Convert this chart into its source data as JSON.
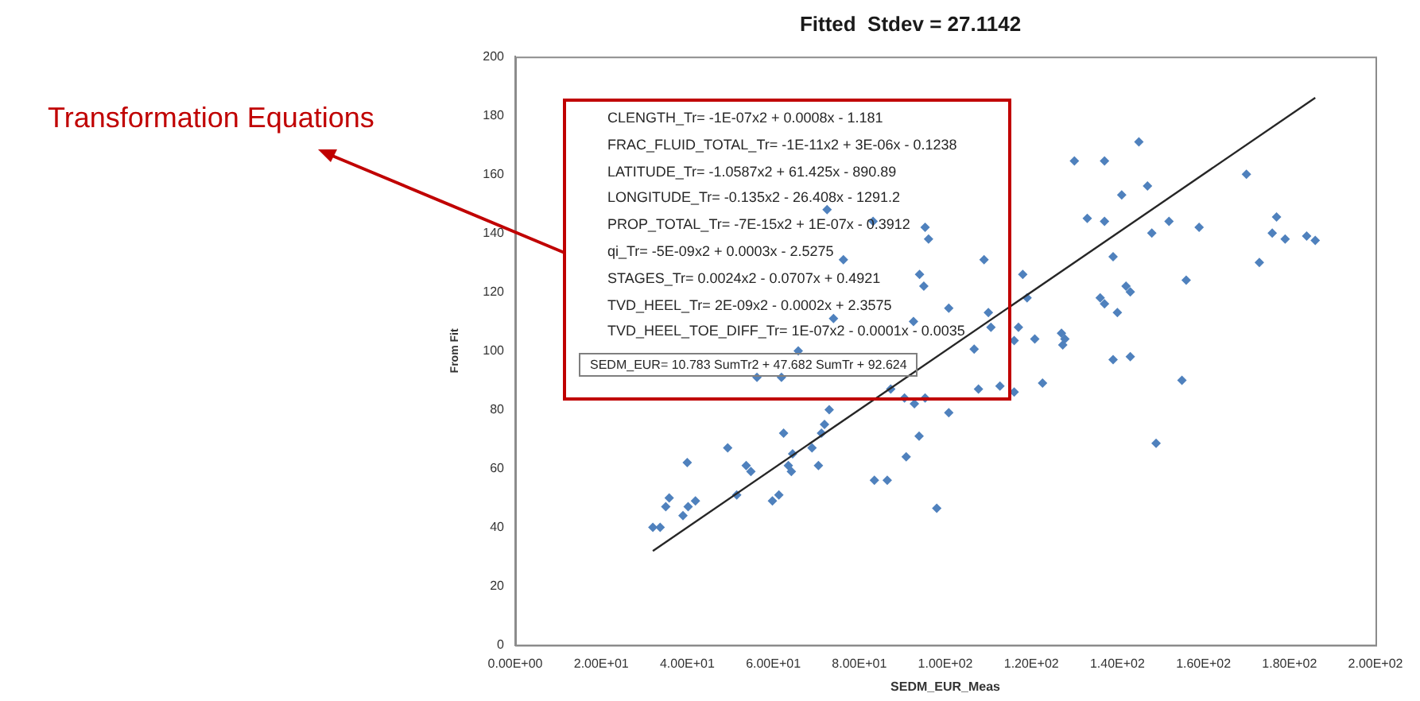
{
  "chart_data": {
    "type": "scatter",
    "title": "Fitted  Stdev = 27.1142",
    "xlabel": "SEDM_EUR_Meas",
    "ylabel": "From Fit",
    "xlim": [
      0,
      200
    ],
    "xticks": [
      {
        "value": 0,
        "label": "0.00E+00"
      },
      {
        "value": 20,
        "label": "2.00E+01"
      },
      {
        "value": 40,
        "label": "4.00E+01"
      },
      {
        "value": 60,
        "label": "6.00E+01"
      },
      {
        "value": 80,
        "label": "8.00E+01"
      },
      {
        "value": 100,
        "label": "1.00E+02"
      },
      {
        "value": 120,
        "label": "1.20E+02"
      },
      {
        "value": 140,
        "label": "1.40E+02"
      },
      {
        "value": 160,
        "label": "1.60E+02"
      },
      {
        "value": 180,
        "label": "1.80E+02"
      },
      {
        "value": 200,
        "label": "2.00E+02"
      }
    ],
    "ylim": [
      0,
      200
    ],
    "yticks": [
      0,
      20,
      40,
      60,
      80,
      100,
      120,
      140,
      160,
      180,
      200
    ],
    "grid": false,
    "marker": "diamond",
    "series": [
      {
        "color": "#4f81bd",
        "x": [
          32,
          33.7,
          35,
          35.8,
          39,
          40,
          40.2,
          41.9,
          49.4,
          51.5,
          53.7,
          54.8,
          56.2,
          59.8,
          61.3,
          61.9,
          62.4,
          63.5,
          64.2,
          64.5,
          65.8,
          69,
          70.5,
          71.2,
          71.9,
          73,
          74,
          83.5,
          86.5,
          87.3,
          90.5,
          90.9,
          92.8,
          93.9,
          95.3,
          98,
          100.8,
          106.7,
          107.7,
          112.7,
          116,
          116,
          117,
          120.8,
          122.6,
          127,
          127.3,
          127.8,
          139,
          143,
          149,
          155,
          72.5,
          83.2,
          76.3,
          95.3,
          96.1,
          109,
          94,
          95,
          100.8,
          110,
          110.6,
          118,
          119,
          130,
          137,
          145,
          147,
          141,
          133,
          137,
          139,
          148,
          152,
          159,
          156,
          136,
          137,
          140,
          142,
          143,
          170,
          173,
          176,
          177,
          179,
          184,
          186,
          92.6
        ],
        "values": [
          40,
          40,
          47,
          50,
          44,
          62,
          47,
          49,
          67,
          51,
          61,
          59,
          91,
          49,
          51,
          91,
          72,
          61,
          59,
          65,
          100,
          67,
          61,
          72,
          75,
          80,
          111,
          56,
          56,
          87,
          84,
          64,
          82,
          71,
          84,
          46.5,
          79,
          100.6,
          87,
          88,
          86,
          103.5,
          108,
          104,
          89,
          106,
          102,
          104,
          97,
          98,
          68.6,
          90,
          148,
          144,
          131,
          142,
          138,
          131,
          126,
          122,
          114.5,
          113,
          108,
          126,
          118,
          164.5,
          164.5,
          171,
          156,
          153,
          145,
          144,
          132,
          140,
          144,
          142,
          124,
          118,
          116,
          113,
          122,
          120,
          160,
          130,
          140,
          145.5,
          138,
          139,
          137.5,
          110
        ]
      },
      {
        "type": "line",
        "color": "#262626",
        "marker": "none",
        "x": [
          32,
          186
        ],
        "values": [
          32,
          186
        ]
      }
    ],
    "annotations": [
      "Transformation Equations",
      "CLENGTH_Tr= -1E-07x2 + 0.0008x - 1.181",
      "FRAC_FLUID_TOTAL_Tr= -1E-11x2 + 3E-06x - 0.1238",
      "LATITUDE_Tr= -1.0587x2 + 61.425x - 890.89",
      "LONGITUDE_Tr= -0.135x2 - 26.408x - 1291.2",
      "PROP_TOTAL_Tr= -7E-15x2 + 1E-07x - 0.3912",
      "qi_Tr= -5E-09x2 + 0.0003x - 2.5275",
      "STAGES_Tr= 0.0024x2 - 0.0707x + 0.4921",
      "TVD_HEEL_Tr= 2E-09x2 - 0.0002x + 2.3575",
      "TVD_HEEL_TOE_DIFF_Tr= 1E-07x2 - 0.0001x - 0.0035",
      "SEDM_EUR= 10.783 SumTr2 + 47.682 SumTr + 92.624"
    ]
  }
}
